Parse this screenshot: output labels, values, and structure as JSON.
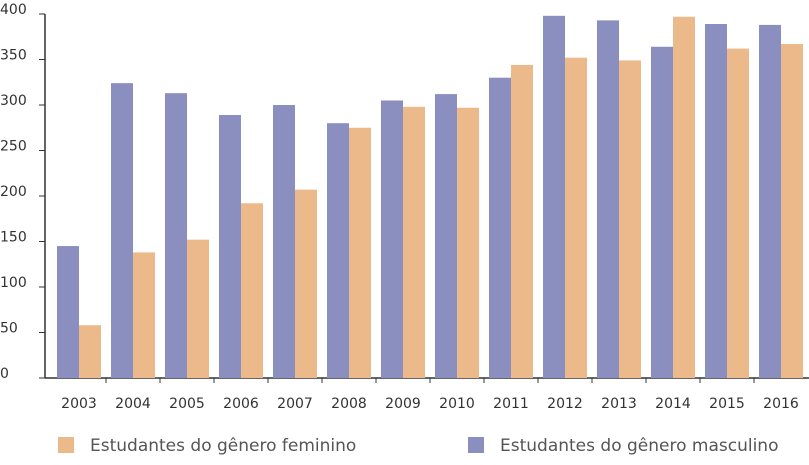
{
  "chart_data": {
    "type": "bar",
    "categories": [
      "2003",
      "2004",
      "2005",
      "2006",
      "2007",
      "2008",
      "2009",
      "2010",
      "2011",
      "2012",
      "2013",
      "2014",
      "2015",
      "2016"
    ],
    "series": [
      {
        "name": "Estudantes do gênero masculino",
        "color": "#8a8fbf",
        "values": [
          145,
          324,
          313,
          289,
          300,
          280,
          305,
          312,
          330,
          398,
          393,
          364,
          389,
          388
        ]
      },
      {
        "name": "Estudantes do gênero feminino",
        "color": "#ecb98a",
        "values": [
          58,
          138,
          152,
          192,
          207,
          275,
          298,
          297,
          344,
          352,
          349,
          397,
          362,
          367
        ]
      }
    ],
    "legend_order": [
      1,
      0
    ],
    "ylim": [
      0,
      400
    ],
    "yticks": [
      0,
      50,
      100,
      150,
      200,
      250,
      300,
      350,
      400
    ],
    "grid": false
  }
}
